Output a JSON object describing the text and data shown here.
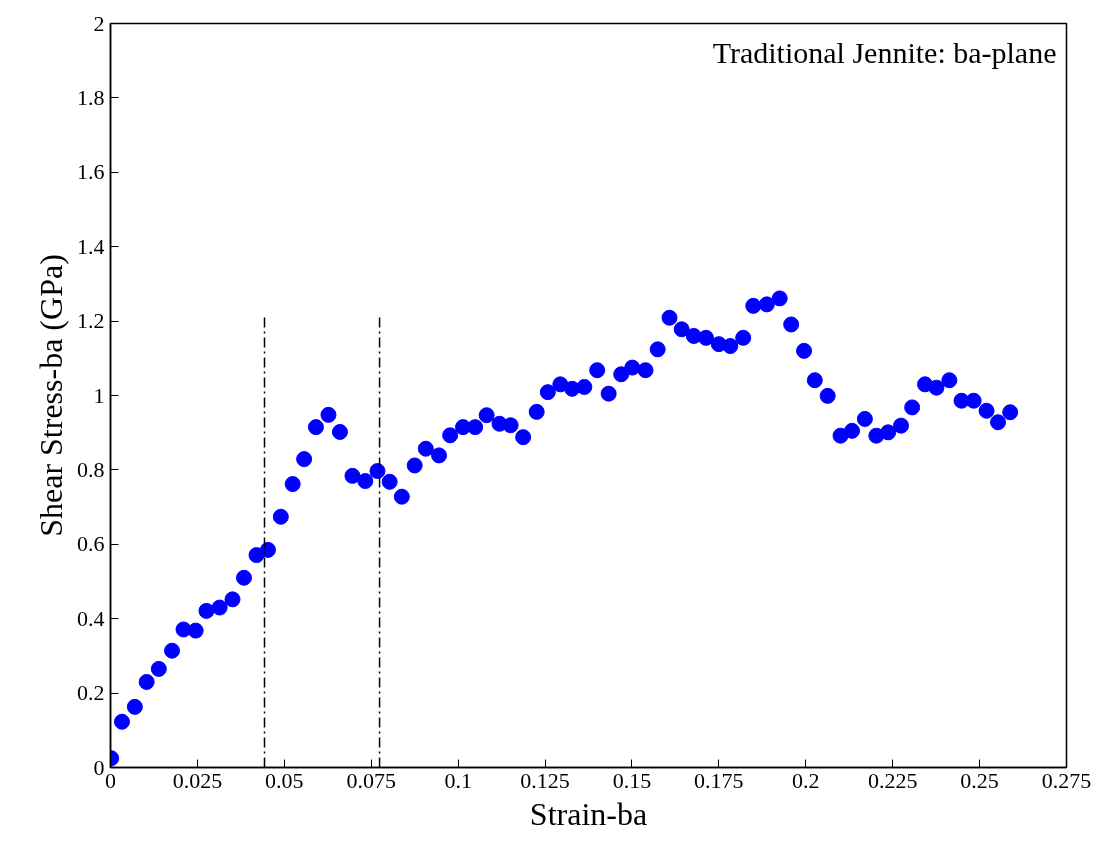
{
  "chart_data": {
    "type": "scatter",
    "title": "Traditional Jennite: ba-plane",
    "xlabel": "Strain-ba",
    "ylabel": "Shear Stress-ba (GPa)",
    "xlim": [
      0,
      0.275
    ],
    "ylim": [
      0,
      2
    ],
    "xticks": [
      0,
      0.025,
      0.05,
      0.075,
      0.1,
      0.125,
      0.15,
      0.175,
      0.2,
      0.225,
      0.25,
      0.275
    ],
    "yticks": [
      0,
      0.2,
      0.4,
      0.6,
      0.8,
      1,
      1.2,
      1.4,
      1.6,
      1.8,
      2
    ],
    "grid": false,
    "marker": "circle",
    "series": [
      {
        "color": "#0000ff",
        "x": [
          0.0002,
          0.0033,
          0.007,
          0.0104,
          0.0139,
          0.0177,
          0.021,
          0.0245,
          0.0276,
          0.0314,
          0.0351,
          0.0384,
          0.042,
          0.0453,
          0.049,
          0.0524,
          0.0557,
          0.0591,
          0.0627,
          0.066,
          0.0696,
          0.0733,
          0.0768,
          0.0803,
          0.0838,
          0.0875,
          0.0907,
          0.0945,
          0.0977,
          0.1014,
          0.1049,
          0.1082,
          0.1119,
          0.1151,
          0.1187,
          0.1226,
          0.1258,
          0.1294,
          0.1328,
          0.1363,
          0.14,
          0.1433,
          0.1469,
          0.1501,
          0.1539,
          0.1574,
          0.1608,
          0.1643,
          0.1678,
          0.1713,
          0.175,
          0.1783,
          0.182,
          0.1849,
          0.1888,
          0.1925,
          0.1958,
          0.1995,
          0.2026,
          0.2063,
          0.21,
          0.2133,
          0.217,
          0.2203,
          0.2237,
          0.2274,
          0.2306,
          0.2343,
          0.2376,
          0.2413,
          0.2448,
          0.2483,
          0.252,
          0.2553,
          0.2588
        ],
        "values": [
          0.025,
          0.123,
          0.163,
          0.23,
          0.265,
          0.314,
          0.371,
          0.368,
          0.421,
          0.43,
          0.452,
          0.51,
          0.571,
          0.585,
          0.674,
          0.762,
          0.829,
          0.915,
          0.948,
          0.902,
          0.784,
          0.77,
          0.797,
          0.768,
          0.728,
          0.812,
          0.857,
          0.839,
          0.893,
          0.915,
          0.915,
          0.947,
          0.924,
          0.92,
          0.888,
          0.956,
          1.009,
          1.03,
          1.018,
          1.023,
          1.068,
          1.005,
          1.057,
          1.075,
          1.068,
          1.124,
          1.209,
          1.178,
          1.16,
          1.155,
          1.138,
          1.133,
          1.155,
          1.241,
          1.245,
          1.261,
          1.191,
          1.12,
          1.041,
          0.999,
          0.892,
          0.905,
          0.937,
          0.892,
          0.901,
          0.919,
          0.968,
          1.03,
          1.021,
          1.041,
          0.986,
          0.986,
          0.959,
          0.928,
          0.955
        ]
      },
      {
        "type": "line",
        "color": "#000000",
        "line_style": "dashed",
        "marker": "none",
        "x": [
          0.0443,
          0.0443
        ],
        "values": [
          0,
          1.21
        ]
      },
      {
        "type": "line",
        "color": "#000000",
        "line_style": "dashed",
        "marker": "none",
        "x": [
          0.0774,
          0.0774
        ],
        "values": [
          0,
          1.21
        ]
      }
    ]
  }
}
